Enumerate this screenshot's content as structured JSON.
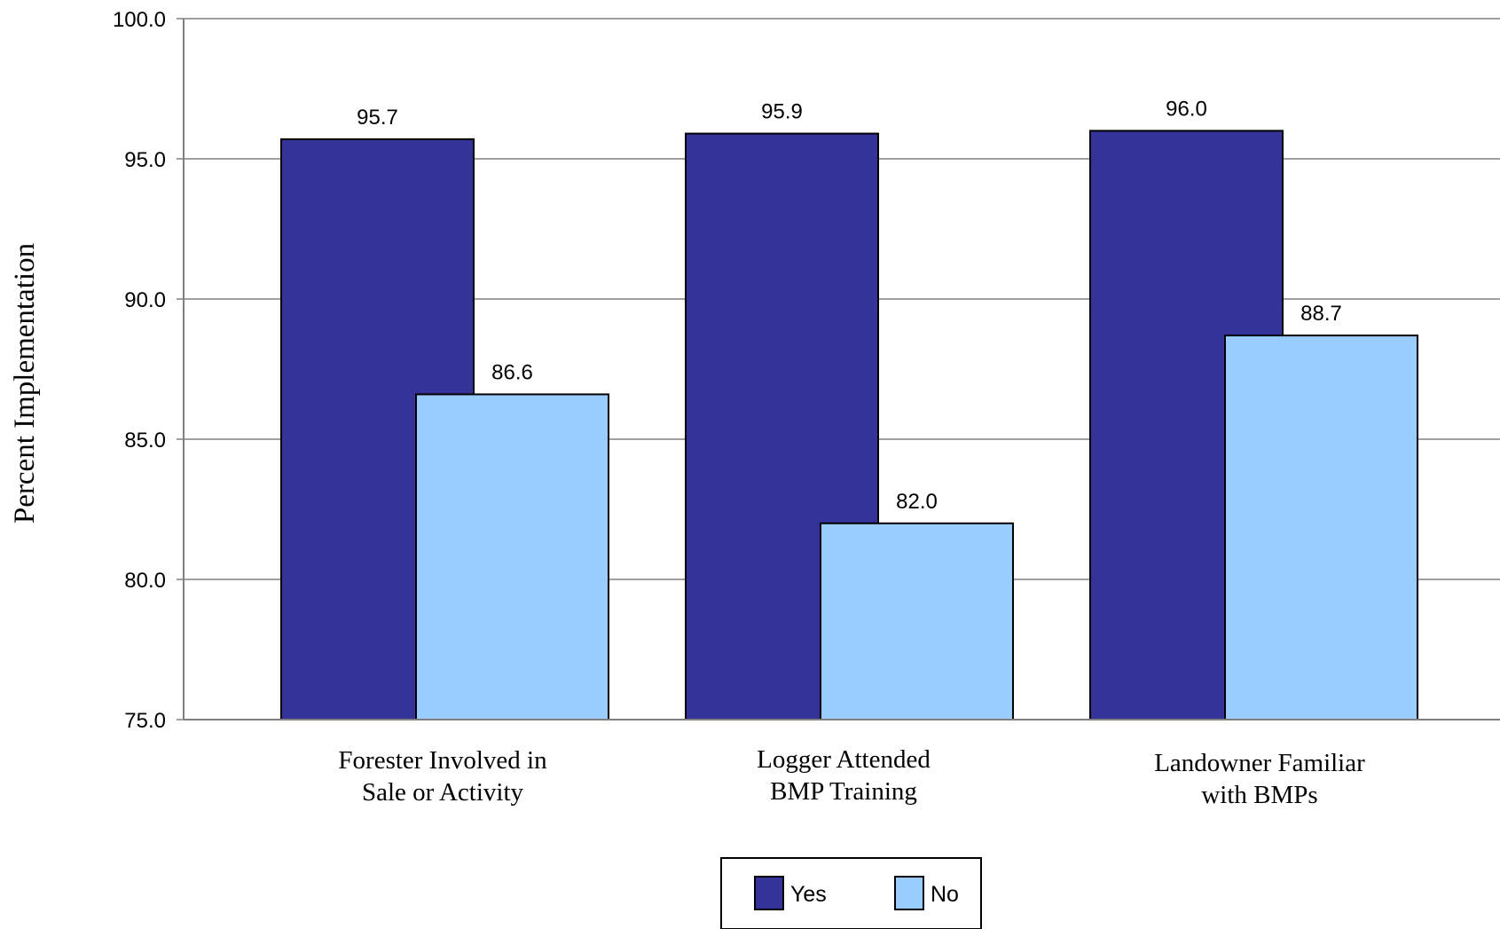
{
  "chart_data": {
    "type": "bar",
    "title": "",
    "xlabel": "",
    "ylabel": "Percent Implementation",
    "ylim": [
      75,
      100
    ],
    "yticks": [
      "75.0",
      "80.0",
      "85.0",
      "90.0",
      "95.0",
      "100.0"
    ],
    "grid": true,
    "legend_position": "bottom-center",
    "categories": [
      [
        "Forester Involved in",
        "Sale or Activity"
      ],
      [
        "Logger Attended",
        "BMP Training"
      ],
      [
        "Landowner Familiar",
        "with BMPs"
      ]
    ],
    "series": [
      {
        "name": "Yes",
        "color": "#333399",
        "values": [
          95.7,
          95.9,
          96.0
        ],
        "labels": [
          "95.7",
          "95.9",
          "96.0"
        ]
      },
      {
        "name": "No",
        "color": "#99CCFF",
        "values": [
          86.6,
          82.0,
          88.7
        ],
        "labels": [
          "86.6",
          "82.0",
          "88.7"
        ]
      }
    ]
  }
}
